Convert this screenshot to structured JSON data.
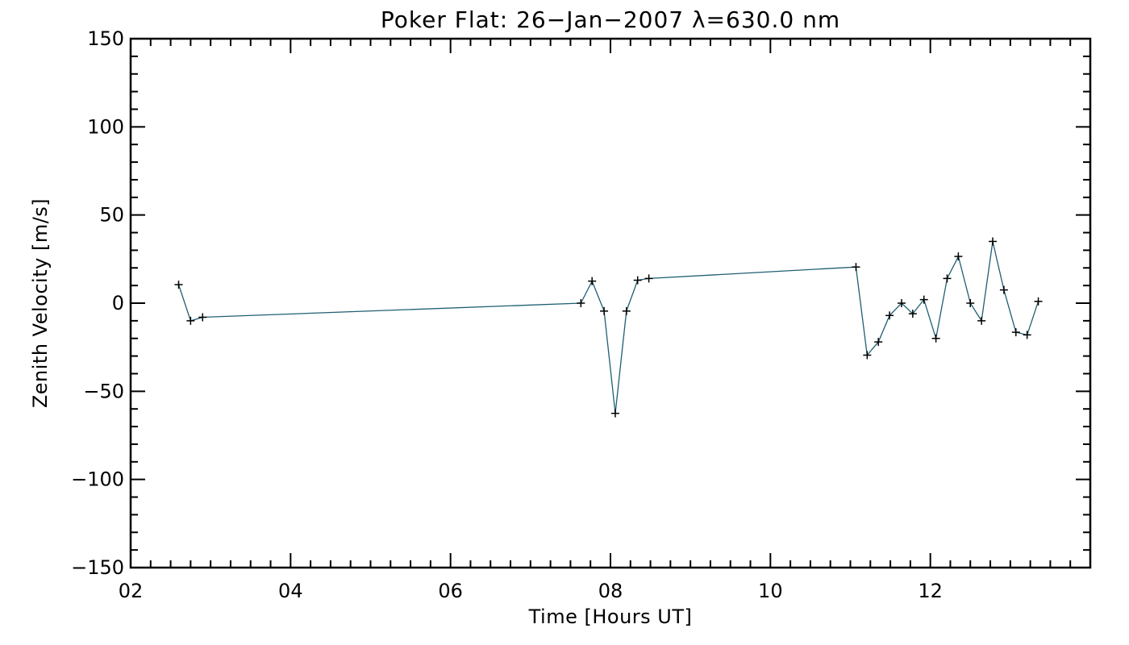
{
  "colors": {
    "line": "#1f5f73",
    "axis": "#000000",
    "marker": "#000000",
    "background": "#ffffff"
  },
  "chart_data": {
    "type": "line",
    "title": "Poker Flat: 26−Jan−2007 λ=630.0 nm",
    "xlabel": "Time [Hours UT]",
    "ylabel": "Zenith Velocity [m/s]",
    "xlim": [
      2,
      14
    ],
    "ylim": [
      -150,
      150
    ],
    "xticks": [
      2,
      4,
      6,
      8,
      10,
      12
    ],
    "xtick_labels": [
      "02",
      "04",
      "06",
      "08",
      "10",
      "12"
    ],
    "yticks": [
      -150,
      -100,
      -50,
      0,
      50,
      100,
      150
    ],
    "ytick_labels": [
      "−150",
      "−100",
      "−50",
      "0",
      "50",
      "100",
      "150"
    ],
    "x_minor_step": 0.25,
    "y_minor_step": 10,
    "marker": "+",
    "series": [
      {
        "name": "Zenith Velocity",
        "x": [
          2.6,
          2.75,
          2.9,
          7.63,
          7.77,
          7.92,
          8.06,
          8.2,
          8.34,
          8.48,
          11.07,
          11.21,
          11.35,
          11.49,
          11.64,
          11.78,
          11.92,
          12.07,
          12.21,
          12.35,
          12.5,
          12.64,
          12.78,
          12.92,
          13.07,
          13.21,
          13.35
        ],
        "y": [
          10.5,
          -10,
          -8,
          0,
          12.5,
          -4.5,
          -62.5,
          -4.5,
          13,
          14,
          20.5,
          -29.5,
          -22,
          -7,
          0,
          -6,
          2,
          -20,
          14,
          26.5,
          0,
          -10,
          35,
          7.5,
          -16.5,
          -18,
          1
        ]
      }
    ]
  }
}
